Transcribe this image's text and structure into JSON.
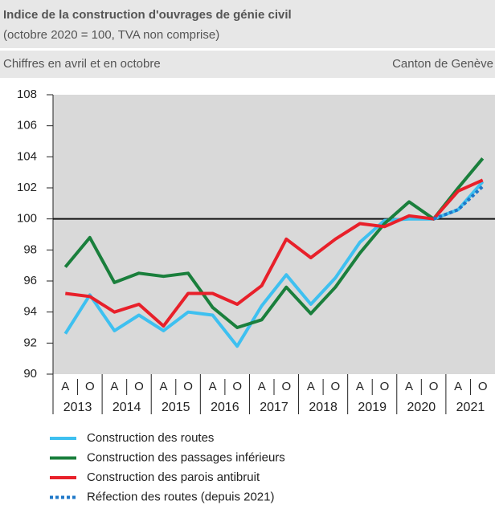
{
  "chart_data": {
    "type": "line",
    "title": "Indice de la construction d'ouvrages de génie civil",
    "subtitle": "(octobre 2020 = 100, TVA non comprise)",
    "note_left": "Chiffres en avril et en octobre",
    "note_right": "Canton de Genève",
    "categories": [
      "A",
      "O",
      "A",
      "O",
      "A",
      "O",
      "A",
      "O",
      "A",
      "O",
      "A",
      "O",
      "A",
      "O",
      "A",
      "O",
      "A",
      "O"
    ],
    "years": [
      "2013",
      "2014",
      "2015",
      "2016",
      "2017",
      "2018",
      "2019",
      "2020",
      "2021"
    ],
    "ylim": [
      90,
      108
    ],
    "yticks": [
      90,
      92,
      94,
      96,
      98,
      100,
      102,
      104,
      106,
      108
    ],
    "reference_line": 100,
    "series": [
      {
        "name": "Construction des routes",
        "color": "#3ec0f0",
        "dash": false,
        "values": [
          92.6,
          95.1,
          92.8,
          93.8,
          92.8,
          94.0,
          93.8,
          91.8,
          94.4,
          96.4,
          94.5,
          96.2,
          98.5,
          99.9,
          100.0,
          100.0,
          100.6,
          102.4
        ]
      },
      {
        "name": "Construction des passages inférieurs",
        "color": "#1a7f3c",
        "dash": false,
        "values": [
          96.9,
          98.8,
          95.9,
          96.5,
          96.3,
          96.5,
          94.3,
          93.0,
          93.5,
          95.6,
          93.9,
          95.6,
          97.8,
          99.7,
          101.1,
          100.0,
          102.0,
          103.9
        ]
      },
      {
        "name": "Construction des parois antibruit",
        "color": "#e8202a",
        "dash": false,
        "values": [
          95.2,
          95.0,
          94.0,
          94.5,
          93.1,
          95.2,
          95.2,
          94.5,
          95.7,
          98.7,
          97.5,
          98.7,
          99.7,
          99.5,
          100.2,
          100.0,
          101.8,
          102.5
        ]
      },
      {
        "name": "Réfection des routes (depuis 2021)",
        "color": "#1f78c8",
        "dash": true,
        "values": [
          null,
          null,
          null,
          null,
          null,
          null,
          null,
          null,
          null,
          null,
          null,
          null,
          null,
          null,
          null,
          100.0,
          100.6,
          102.1
        ]
      }
    ]
  }
}
